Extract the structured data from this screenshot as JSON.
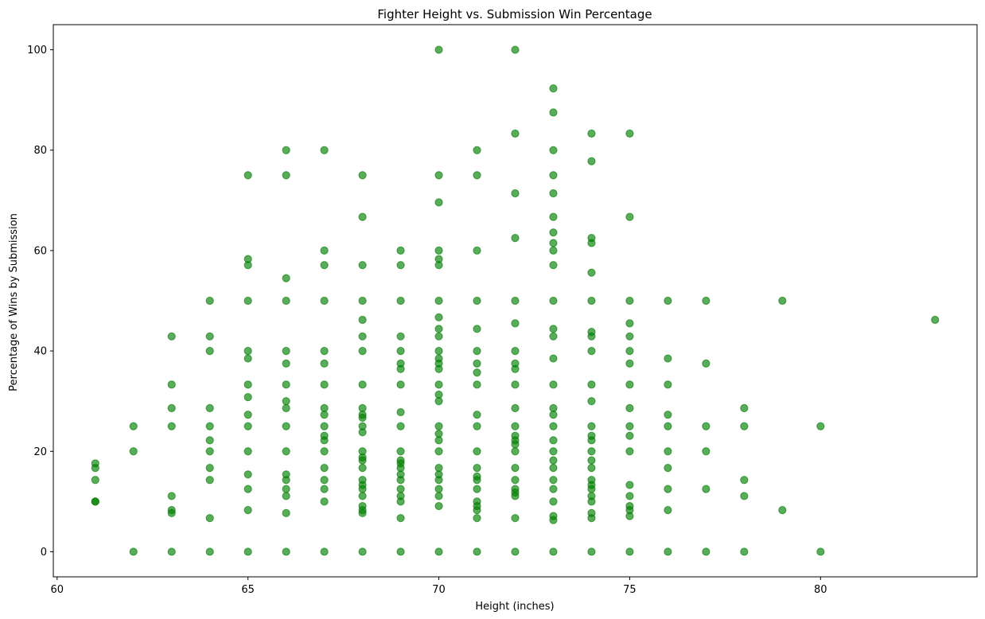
{
  "chart_data": {
    "type": "scatter",
    "title": "Fighter Height vs. Submission Win Percentage",
    "xlabel": "Height (inches)",
    "ylabel": "Percentage of Wins by Submission",
    "xlim": [
      59.9,
      84.1
    ],
    "ylim": [
      -5,
      105
    ],
    "xticks": [
      60,
      65,
      70,
      75,
      80
    ],
    "yticks": [
      0,
      20,
      40,
      60,
      80,
      100
    ],
    "grid": false,
    "marker_color": "#008000",
    "marker_alpha": 0.65,
    "columns": [
      {
        "x": 61,
        "y": [
          17.6,
          16.7,
          14.3,
          10,
          10
        ]
      },
      {
        "x": 62,
        "y": [
          25,
          20,
          0
        ]
      },
      {
        "x": 63,
        "y": [
          42.9,
          33.3,
          28.6,
          25,
          11.1,
          8.3,
          7.7,
          0
        ]
      },
      {
        "x": 64,
        "y": [
          50,
          42.9,
          40,
          28.6,
          25,
          22.2,
          20,
          16.7,
          14.3,
          6.7,
          0
        ]
      },
      {
        "x": 65,
        "y": [
          75,
          58.3,
          57.1,
          50,
          40,
          38.5,
          33.3,
          30.8,
          27.3,
          25,
          20,
          15.4,
          12.5,
          8.3,
          0
        ]
      },
      {
        "x": 66,
        "y": [
          80,
          75,
          54.5,
          50,
          40,
          37.5,
          33.3,
          30,
          28.6,
          25,
          20,
          15.4,
          14.3,
          12.5,
          11.1,
          7.7,
          0
        ]
      },
      {
        "x": 67,
        "y": [
          80,
          60,
          57.1,
          50,
          40,
          37.5,
          33.3,
          28.6,
          27.3,
          25,
          23.1,
          22.2,
          20,
          16.7,
          14.3,
          12.5,
          10,
          0
        ]
      },
      {
        "x": 68,
        "y": [
          75,
          66.7,
          57.1,
          50,
          46.2,
          42.9,
          40,
          33.3,
          28.6,
          27.3,
          26.7,
          25,
          23.8,
          20,
          18.8,
          18.2,
          16.7,
          14.3,
          13.3,
          12.5,
          11.1,
          9.1,
          8.3,
          7.7,
          0
        ]
      },
      {
        "x": 69,
        "y": [
          60,
          57.1,
          50,
          42.9,
          40,
          37.5,
          36.4,
          33.3,
          27.8,
          25,
          20,
          18.2,
          17.6,
          16.7,
          15.4,
          14.3,
          12.5,
          11.1,
          10,
          6.7,
          0
        ]
      },
      {
        "x": 70,
        "y": [
          100,
          75,
          69.6,
          60,
          58.3,
          57.1,
          50,
          46.7,
          44.4,
          42.9,
          40,
          38.5,
          37.5,
          36.4,
          33.3,
          31.3,
          30,
          25,
          23.5,
          22.2,
          20,
          16.7,
          15.4,
          14.3,
          12.5,
          11.1,
          9.1,
          0
        ]
      },
      {
        "x": 71,
        "y": [
          80,
          75,
          60,
          50,
          44.4,
          40,
          37.5,
          35.7,
          33.3,
          27.3,
          25,
          20,
          16.7,
          15,
          14.3,
          12.5,
          10,
          9.1,
          8.3,
          6.7,
          0
        ]
      },
      {
        "x": 72,
        "y": [
          100,
          83.3,
          71.4,
          62.5,
          50,
          45.5,
          40,
          37.5,
          36.4,
          33.3,
          28.6,
          25,
          23.1,
          22.2,
          21.4,
          20,
          16.7,
          14.3,
          12.5,
          11.8,
          11.1,
          6.7,
          0
        ]
      },
      {
        "x": 73,
        "y": [
          92.3,
          87.5,
          80,
          75,
          71.4,
          66.7,
          63.6,
          61.5,
          60,
          57.1,
          50,
          44.4,
          42.9,
          38.5,
          33.3,
          28.6,
          27.3,
          25,
          22.2,
          20,
          18.2,
          16.7,
          14.3,
          12.5,
          10,
          7.1,
          6.3,
          0
        ]
      },
      {
        "x": 74,
        "y": [
          83.3,
          77.8,
          62.5,
          61.5,
          55.6,
          50,
          43.8,
          42.9,
          40,
          33.3,
          30,
          25,
          23.1,
          22.2,
          20,
          18.2,
          16.7,
          14.3,
          13.3,
          12.5,
          11.1,
          10,
          7.7,
          6.7,
          0
        ]
      },
      {
        "x": 75,
        "y": [
          83.3,
          66.7,
          50,
          45.5,
          42.9,
          40,
          37.5,
          33.3,
          28.6,
          25,
          23.1,
          20,
          13.3,
          11.1,
          9.1,
          8.3,
          7.1,
          0
        ]
      },
      {
        "x": 76,
        "y": [
          50,
          38.5,
          33.3,
          27.3,
          25,
          20,
          16.7,
          12.5,
          8.3,
          0
        ]
      },
      {
        "x": 77,
        "y": [
          50,
          37.5,
          25,
          20,
          12.5,
          0
        ]
      },
      {
        "x": 78,
        "y": [
          28.6,
          25,
          14.3,
          11.1,
          0
        ]
      },
      {
        "x": 79,
        "y": [
          50,
          8.3
        ]
      },
      {
        "x": 80,
        "y": [
          25,
          0
        ]
      },
      {
        "x": 83,
        "y": [
          46.2
        ]
      }
    ]
  }
}
